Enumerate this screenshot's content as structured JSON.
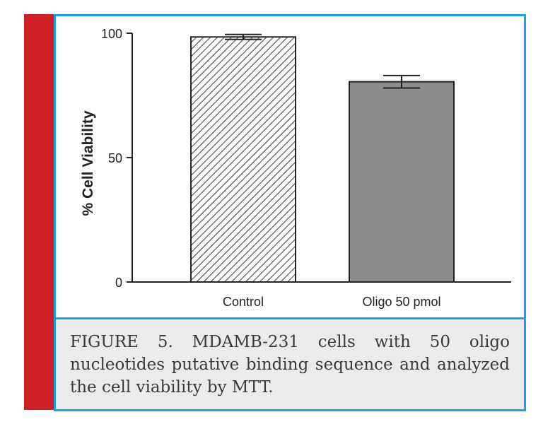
{
  "chart_data": {
    "type": "bar",
    "categories": [
      "Control",
      "Oligo 50 pmol"
    ],
    "values": [
      98.5,
      80.5
    ],
    "error": [
      1,
      2.5
    ],
    "ylabel": "% Cell Viability",
    "xlabel": "",
    "ylim": [
      0,
      100
    ],
    "yticks": [
      "0",
      "50",
      "100"
    ],
    "bar_styles": [
      "hatched",
      "gray"
    ],
    "grid": false
  },
  "caption": "FIGURE 5. MDAMB-231 cells with 50 oligo nucleotides putative binding sequence and analyzed the cell viability by MTT.",
  "colors": {
    "accent_blue": "#1da1dc",
    "accent_red": "#cf2027",
    "bar_gray": "#8c8c8c",
    "caption_bg": "#ebebeb"
  }
}
